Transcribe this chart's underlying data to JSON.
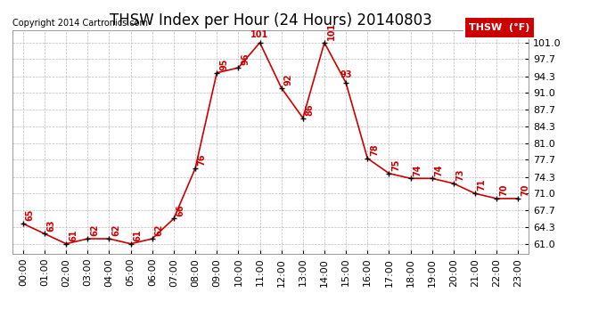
{
  "title": "THSW Index per Hour (24 Hours) 20140803",
  "copyright": "Copyright 2014 Cartronics.com",
  "legend_label": "THSW  (°F)",
  "hours": [
    0,
    1,
    2,
    3,
    4,
    5,
    6,
    7,
    8,
    9,
    10,
    11,
    12,
    13,
    14,
    15,
    16,
    17,
    18,
    19,
    20,
    21,
    22,
    23
  ],
  "values": [
    65,
    63,
    61,
    62,
    62,
    61,
    62,
    66,
    76,
    95,
    96,
    101,
    92,
    86,
    101,
    93,
    78,
    75,
    74,
    74,
    73,
    71,
    70,
    70
  ],
  "line_color": "#cc0000",
  "marker_color": "#000000",
  "label_color": "#cc0000",
  "bg_color": "#ffffff",
  "grid_color": "#bbbbbb",
  "yticks": [
    61.0,
    64.3,
    67.7,
    71.0,
    74.3,
    77.7,
    81.0,
    84.3,
    87.7,
    91.0,
    94.3,
    97.7,
    101.0
  ],
  "ylim": [
    59.0,
    103.5
  ],
  "xlim": [
    -0.5,
    23.5
  ],
  "title_fontsize": 12,
  "axis_fontsize": 8,
  "label_fontsize": 7,
  "copyright_fontsize": 7,
  "legend_fontsize": 8
}
